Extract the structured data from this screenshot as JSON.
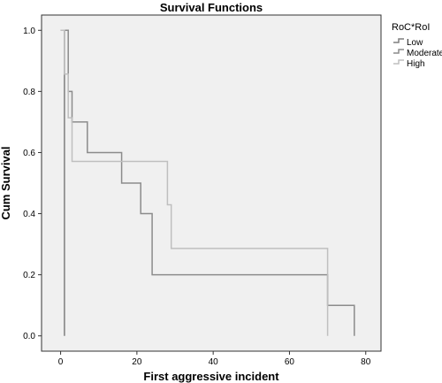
{
  "chart_data": {
    "type": "line",
    "title": "Survival Functions",
    "xlabel": "First aggressive incident",
    "ylabel": "Cum Survival",
    "xlim": [
      -5,
      84
    ],
    "ylim": [
      -0.05,
      1.05
    ],
    "xticks": [
      0,
      20,
      40,
      60,
      80
    ],
    "yticks": [
      0.0,
      0.2,
      0.4,
      0.6,
      0.8,
      1.0
    ],
    "ytick_labels": [
      "0.0",
      "0.2",
      "0.4",
      "0.6",
      "0.8",
      "1.0"
    ],
    "grid": false,
    "legend": {
      "title": "RoC*RoI",
      "position": "top-right-outside"
    },
    "series": [
      {
        "name": "Low",
        "color": "#7f7f7f",
        "x": [
          0,
          1,
          1,
          70,
          70,
          77,
          77
        ],
        "y": [
          1.0,
          1.0,
          0.0,
          0.0,
          0.0,
          0.0,
          0.0
        ],
        "steps": [
          [
            0,
            1.0
          ],
          [
            1,
            1.0
          ],
          [
            1,
            0.0
          ]
        ]
      },
      {
        "name": "Moderate",
        "color": "#8c8c8c",
        "steps": [
          [
            0,
            1.0
          ],
          [
            2,
            1.0
          ],
          [
            2,
            0.8
          ],
          [
            3,
            0.8
          ],
          [
            3,
            0.7
          ],
          [
            7,
            0.7
          ],
          [
            7,
            0.6
          ],
          [
            16,
            0.6
          ],
          [
            16,
            0.5
          ],
          [
            21,
            0.5
          ],
          [
            21,
            0.4
          ],
          [
            24,
            0.4
          ],
          [
            24,
            0.2
          ],
          [
            70,
            0.2
          ],
          [
            70,
            0.1
          ],
          [
            77,
            0.1
          ],
          [
            77,
            0.0
          ]
        ]
      },
      {
        "name": "High",
        "color": "#bfbfbf",
        "steps": [
          [
            0,
            1.0
          ],
          [
            1,
            1.0
          ],
          [
            1,
            0.857
          ],
          [
            2,
            0.857
          ],
          [
            2,
            0.714
          ],
          [
            3,
            0.714
          ],
          [
            3,
            0.571
          ],
          [
            28,
            0.571
          ],
          [
            28,
            0.429
          ],
          [
            29,
            0.429
          ],
          [
            29,
            0.286
          ],
          [
            70,
            0.286
          ],
          [
            70,
            0.0
          ]
        ]
      }
    ]
  }
}
